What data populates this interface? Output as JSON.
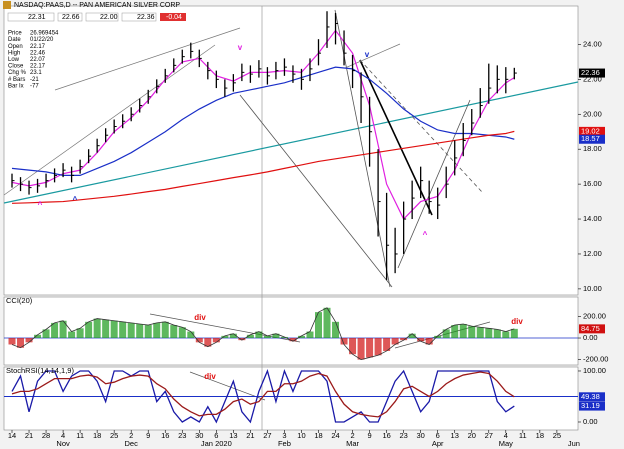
{
  "header": {
    "quote": [
      "22.31",
      "22.66",
      "22.00",
      "22.36",
      "-0.04"
    ]
  },
  "info": [
    [
      "Price",
      "26.969454"
    ],
    [
      "Date",
      "01/22/20"
    ],
    [
      "Open",
      "22.17"
    ],
    [
      "High",
      "22.46"
    ],
    [
      "Low",
      "22.07"
    ],
    [
      "Close",
      "22.17"
    ],
    [
      "Chg %",
      "23.1"
    ],
    [
      "# Bars",
      "-21"
    ],
    [
      "Bar Ix",
      "-77"
    ]
  ],
  "chart_data": [
    {
      "type": "ohlc",
      "title": "NASDAQ:PAAS,D -- PAN AMERICAN SILVER CORP",
      "color": "#000000",
      "x": [
        0,
        0.5,
        1,
        1.5,
        2,
        2.5,
        3,
        3.5,
        4,
        4.5,
        5,
        5.5,
        6,
        6.5,
        7,
        7.5,
        8,
        8.5,
        9,
        9.5,
        10,
        10.5,
        11,
        11.5,
        12,
        12.5,
        13,
        13.5,
        14,
        14.5,
        15,
        15.5,
        16,
        16.5,
        17,
        17.5,
        18,
        18.5,
        19,
        19.5,
        20,
        20.5,
        21,
        21.5,
        22,
        22.5,
        23,
        23.5,
        24,
        24.5,
        25,
        25.5,
        26,
        26.5,
        27,
        27.5,
        28,
        28.5,
        29,
        29.5
      ],
      "high": [
        16.6,
        16.4,
        16.2,
        16.3,
        16.6,
        16.9,
        17.2,
        17.0,
        17.4,
        18.0,
        18.6,
        19.2,
        19.7,
        20.0,
        20.4,
        20.9,
        21.4,
        22.0,
        22.6,
        23.2,
        23.7,
        24.1,
        23.7,
        23.0,
        22.5,
        22.0,
        22.3,
        22.9,
        22.8,
        23.1,
        22.7,
        23.0,
        23.2,
        22.8,
        22.6,
        23.2,
        24.3,
        25.9,
        25.8,
        24.8,
        23.4,
        22.4,
        21.0,
        18.0,
        15.5,
        13.5,
        15.0,
        16.2,
        17.0,
        16.2,
        15.8,
        17.0,
        18.5,
        19.5,
        20.3,
        21.5,
        22.9,
        22.8,
        22.7,
        22.66
      ],
      "low": [
        15.8,
        15.6,
        15.4,
        15.5,
        15.8,
        16.1,
        16.4,
        16.1,
        16.6,
        17.2,
        17.8,
        18.4,
        18.9,
        19.2,
        19.6,
        20.1,
        20.6,
        21.2,
        21.8,
        22.4,
        22.9,
        23.2,
        22.7,
        22.0,
        21.5,
        21.0,
        21.3,
        21.9,
        21.8,
        22.1,
        21.7,
        22.0,
        22.2,
        21.8,
        21.4,
        21.9,
        22.8,
        23.8,
        24.0,
        22.8,
        21.5,
        19.5,
        17.0,
        13.0,
        10.5,
        10.9,
        12.0,
        14.0,
        15.2,
        14.3,
        14.0,
        15.2,
        16.5,
        17.6,
        18.8,
        19.8,
        20.6,
        21.2,
        21.2,
        22.0
      ],
      "close": [
        16.2,
        16.0,
        15.8,
        15.9,
        16.2,
        16.5,
        16.8,
        16.5,
        17.0,
        17.6,
        18.2,
        18.8,
        19.3,
        19.6,
        20.0,
        20.5,
        21.0,
        21.6,
        22.2,
        22.8,
        23.3,
        23.6,
        23.2,
        22.5,
        22.0,
        21.5,
        21.8,
        22.4,
        22.3,
        22.6,
        22.2,
        22.5,
        22.7,
        22.3,
        22.0,
        22.6,
        23.5,
        25.0,
        25.2,
        23.5,
        22.5,
        21.0,
        19.0,
        15.0,
        12.5,
        12.0,
        14.0,
        15.2,
        16.2,
        15.0,
        14.8,
        16.0,
        17.5,
        18.5,
        19.5,
        20.5,
        21.5,
        22.0,
        22.0,
        22.36
      ],
      "ma_x": [
        0,
        1,
        2,
        3,
        4,
        5,
        6,
        7,
        8,
        9,
        10,
        11,
        12,
        13,
        14,
        15,
        16,
        17,
        18,
        19,
        20,
        21,
        22,
        23,
        24,
        25,
        26,
        27,
        28,
        29,
        29.5
      ],
      "moving_averages": [
        {
          "color": "#e020e0",
          "values": [
            16.1,
            15.9,
            16.1,
            16.6,
            16.8,
            17.8,
            19.0,
            19.8,
            20.8,
            22.0,
            23.0,
            23.2,
            22.2,
            21.9,
            22.4,
            22.4,
            22.5,
            22.4,
            23.5,
            24.8,
            23.5,
            20.5,
            16.0,
            14.0,
            15.0,
            15.3,
            16.8,
            19.0,
            20.8,
            21.8,
            22.1
          ]
        },
        {
          "color": "#1a2fc8",
          "values": [
            16.9,
            16.8,
            16.7,
            16.5,
            16.5,
            16.9,
            17.3,
            17.8,
            18.4,
            19.0,
            19.7,
            20.3,
            20.8,
            21.2,
            21.4,
            21.6,
            21.8,
            22.1,
            22.4,
            22.7,
            22.6,
            22.0,
            21.2,
            20.3,
            19.6,
            19.1,
            18.9,
            18.9,
            18.8,
            18.7,
            18.57
          ]
        },
        {
          "color": "#e01010",
          "values": [
            14.9,
            14.93,
            14.97,
            15.0,
            15.1,
            15.2,
            15.3,
            15.43,
            15.57,
            15.7,
            15.87,
            16.03,
            16.2,
            16.37,
            16.53,
            16.7,
            16.9,
            17.1,
            17.3,
            17.45,
            17.6,
            17.75,
            17.9,
            18.05,
            18.2,
            18.35,
            18.5,
            18.65,
            18.8,
            18.9,
            19.02
          ]
        }
      ],
      "xlim": [
        -0.47,
        33.24
      ],
      "ylim": [
        9.65,
        26.2
      ],
      "yticks": [
        {
          "value": 10,
          "label": "10.00"
        },
        {
          "value": 12,
          "label": "12.00"
        },
        {
          "value": 14,
          "label": "14.00"
        },
        {
          "value": 16,
          "label": "16.00"
        },
        {
          "value": 18,
          "label": "18.00"
        },
        {
          "value": 20,
          "label": "20.00"
        },
        {
          "value": 22,
          "label": "22.00"
        },
        {
          "value": 24,
          "label": "24.00"
        }
      ],
      "annotations": [
        {
          "text": "^",
          "color": "#e020e0"
        },
        {
          "text": "^",
          "color": "#1a2fc8"
        },
        {
          "text": "v",
          "color": "#e020e0"
        },
        {
          "text": "v",
          "color": "#1a2fc8"
        },
        {
          "text": "^",
          "color": "#e020e0"
        }
      ]
    },
    {
      "type": "bar",
      "title": "CCI(20)",
      "positive_color": "#1a9a1a",
      "negative_color": "#d01010",
      "line_color": "#333333",
      "values": [
        -60,
        -90,
        -40,
        30,
        80,
        140,
        160,
        60,
        90,
        150,
        180,
        170,
        160,
        150,
        140,
        130,
        120,
        140,
        150,
        120,
        100,
        60,
        -40,
        -80,
        -40,
        20,
        40,
        -20,
        30,
        60,
        20,
        40,
        10,
        -30,
        20,
        60,
        240,
        280,
        150,
        -60,
        -150,
        -200,
        -180,
        -160,
        -120,
        -60,
        -20,
        40,
        -30,
        -60,
        20,
        80,
        120,
        130,
        110,
        100,
        90,
        80,
        60,
        84.75
      ],
      "xlim": [
        -0.47,
        33.24
      ],
      "ylim": [
        -250,
        380
      ],
      "yticks": [
        {
          "value": -200,
          "label": "-200.00"
        },
        {
          "value": 0,
          "label": "0.00"
        },
        {
          "value": 200,
          "label": "200.00"
        }
      ],
      "annotations": [
        {
          "text": "div",
          "color": "#e01010"
        },
        {
          "text": "div",
          "color": "#e01010"
        }
      ]
    },
    {
      "type": "line",
      "title": "StochRSI(14,14,1,9)",
      "ref_level": 50,
      "ref_color": "#1a2fc8",
      "series": [
        {
          "color": "#1a1aa8",
          "values": [
            60,
            90,
            20,
            80,
            100,
            100,
            60,
            90,
            100,
            100,
            80,
            40,
            100,
            100,
            90,
            100,
            100,
            40,
            60,
            20,
            0,
            10,
            0,
            30,
            0,
            40,
            80,
            20,
            0,
            60,
            100,
            40,
            100,
            60,
            100,
            100,
            100,
            80,
            0,
            0,
            10,
            20,
            0,
            0,
            40,
            80,
            100,
            60,
            20,
            40,
            100,
            100,
            100,
            100,
            100,
            100,
            100,
            40,
            20,
            31.19
          ]
        },
        {
          "color": "#9b1a1a",
          "values": [
            55,
            60,
            60,
            65,
            75,
            85,
            85,
            85,
            90,
            92,
            88,
            75,
            78,
            85,
            90,
            92,
            90,
            75,
            65,
            45,
            30,
            20,
            12,
            15,
            15,
            25,
            40,
            45,
            35,
            40,
            60,
            60,
            75,
            75,
            80,
            90,
            95,
            90,
            60,
            35,
            20,
            15,
            12,
            10,
            20,
            40,
            65,
            70,
            60,
            50,
            60,
            75,
            85,
            92,
            95,
            98,
            95,
            80,
            60,
            49.38
          ]
        }
      ],
      "xlim": [
        -0.47,
        33.24
      ],
      "ylim": [
        -15.7,
        107.8
      ],
      "yticks": [
        {
          "value": 0,
          "label": "0.00"
        },
        {
          "value": 100,
          "label": "100.00"
        }
      ],
      "xticks": [
        {
          "value": 0,
          "label": "14"
        },
        {
          "value": 1,
          "label": "21"
        },
        {
          "value": 2,
          "label": "28"
        },
        {
          "value": 3,
          "label": "4"
        },
        {
          "value": 4,
          "label": "11"
        },
        {
          "value": 5,
          "label": "18"
        },
        {
          "value": 6,
          "label": "25"
        },
        {
          "value": 7,
          "label": "2"
        },
        {
          "value": 8,
          "label": "9"
        },
        {
          "value": 9,
          "label": "16"
        },
        {
          "value": 10,
          "label": "23"
        },
        {
          "value": 11,
          "label": "30"
        },
        {
          "value": 12,
          "label": "6"
        },
        {
          "value": 13,
          "label": "13"
        },
        {
          "value": 14,
          "label": "21"
        },
        {
          "value": 15,
          "label": "27"
        },
        {
          "value": 16,
          "label": "3"
        },
        {
          "value": 17,
          "label": "10"
        },
        {
          "value": 18,
          "label": "18"
        },
        {
          "value": 19,
          "label": "24"
        },
        {
          "value": 20,
          "label": "2"
        },
        {
          "value": 21,
          "label": "9"
        },
        {
          "value": 22,
          "label": "16"
        },
        {
          "value": 23,
          "label": "23"
        },
        {
          "value": 24,
          "label": "30"
        },
        {
          "value": 25,
          "label": "6"
        },
        {
          "value": 26,
          "label": "13"
        },
        {
          "value": 27,
          "label": "20"
        },
        {
          "value": 28,
          "label": "27"
        },
        {
          "value": 29,
          "label": "4"
        },
        {
          "value": 30,
          "label": "11"
        },
        {
          "value": 31,
          "label": "18"
        },
        {
          "value": 32,
          "label": "25"
        }
      ],
      "month_ticks": [
        {
          "value": 3,
          "label": "Nov"
        },
        {
          "value": 7,
          "label": "Dec"
        },
        {
          "value": 12,
          "label": "Jan 2020"
        },
        {
          "value": 16,
          "label": "Feb"
        },
        {
          "value": 20,
          "label": "Mar"
        },
        {
          "value": 25,
          "label": "Apr"
        },
        {
          "value": 29,
          "label": "May"
        },
        {
          "value": 33,
          "label": "Jun"
        }
      ],
      "annotations": [
        {
          "text": "div",
          "color": "#e01010"
        }
      ]
    }
  ]
}
